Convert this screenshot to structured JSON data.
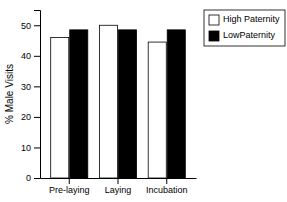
{
  "chart_data": {
    "type": "bar",
    "categories": [
      "Pre-laying",
      "Laying",
      "Incubation"
    ],
    "series": [
      {
        "name": "High Paternity",
        "color": "#ffffff",
        "values": [
          46,
          50,
          44.5
        ]
      },
      {
        "name": "LowPaternity",
        "color": "#000000",
        "values": [
          48.5,
          48.5,
          48.5
        ]
      }
    ],
    "ylabel": "% Male Visits",
    "ylim": [
      0,
      55
    ],
    "yticks": [
      0,
      10,
      20,
      30,
      40,
      50
    ],
    "legend": "right"
  }
}
